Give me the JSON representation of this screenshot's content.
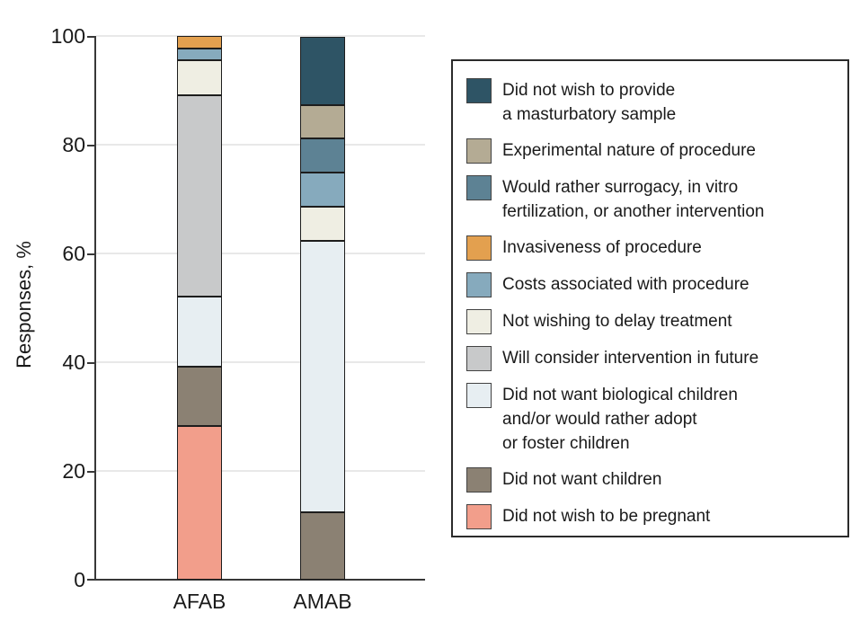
{
  "figure": {
    "background": "#ffffff",
    "text_color": "#1a1a1a",
    "axis_color": "#383838",
    "gridline_color": "#e8e8e8"
  },
  "chart_data": {
    "type": "bar",
    "stacked": true,
    "orientation": "vertical",
    "title": "",
    "xlabel": "",
    "ylabel": "Responses, %",
    "ylim": [
      0,
      100
    ],
    "yticks": [
      0,
      20,
      40,
      60,
      80,
      100
    ],
    "ytick_labels": [
      "100",
      "80",
      "60",
      "40",
      "20",
      "0"
    ],
    "grid": true,
    "legend_position": "right",
    "categories": [
      "AFAB",
      "AMAB"
    ],
    "series": [
      {
        "name": "Did not wish to provide a masturbatory sample",
        "legend_label": "Did not wish to provide\na masturbatory sample",
        "color": "#2e5465",
        "values": [
          0,
          12.5
        ]
      },
      {
        "name": "Experimental nature of procedure",
        "legend_label": "Experimental nature of procedure",
        "color": "#b4ab94",
        "values": [
          0,
          6.25
        ]
      },
      {
        "name": "Would rather surrogacy, in vitro fertilization, or another intervention",
        "legend_label": "Would rather surrogacy, in vitro\nfertilization, or another intervention",
        "color": "#5d8294",
        "values": [
          0,
          6.25
        ]
      },
      {
        "name": "Invasiveness of procedure",
        "legend_label": "Invasiveness of procedure",
        "color": "#e3a04f",
        "values": [
          2.2,
          0
        ]
      },
      {
        "name": "Costs associated with procedure",
        "legend_label": "Costs associated with procedure",
        "color": "#86aabd",
        "values": [
          2.2,
          6.25
        ]
      },
      {
        "name": "Not wishing to delay treatment",
        "legend_label": "Not wishing to delay treatment",
        "color": "#efeee3",
        "values": [
          6.5,
          6.25
        ]
      },
      {
        "name": "Will consider intervention in future",
        "legend_label": "Will consider intervention in future",
        "color": "#c8c9ca",
        "values": [
          37,
          0
        ]
      },
      {
        "name": "Did not want biological children and/or would rather adopt or foster children",
        "legend_label": "Did not want biological children\nand/or would rather adopt\nor foster children",
        "color": "#e7eef2",
        "values": [
          13,
          50
        ]
      },
      {
        "name": "Did not want children",
        "legend_label": "Did not want children",
        "color": "#8b8173",
        "values": [
          10.9,
          12.5
        ]
      },
      {
        "name": "Did not wish to be pregnant",
        "legend_label": "Did not wish to be pregnant",
        "color": "#f29e8b",
        "values": [
          28.3,
          0
        ]
      }
    ]
  }
}
